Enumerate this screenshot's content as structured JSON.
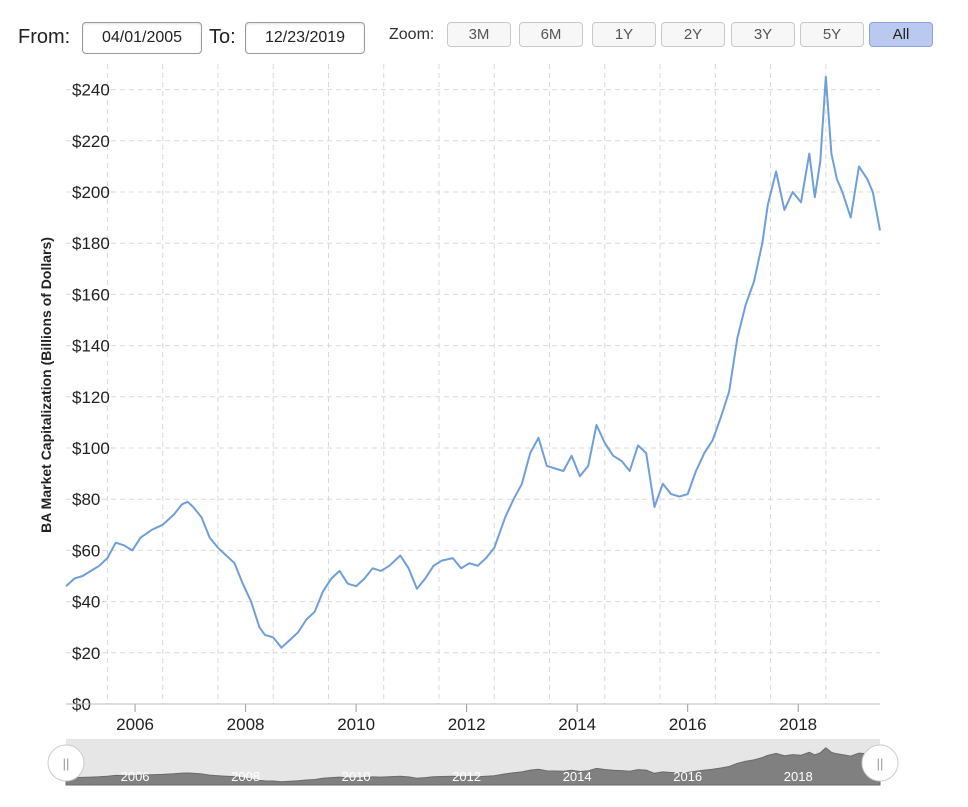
{
  "controls": {
    "from_label": "From:",
    "from_value": "04/01/2005",
    "to_label": "To:",
    "to_value": "12/23/2019",
    "zoom_label": "Zoom:",
    "zoom_buttons": [
      "3M",
      "6M",
      "1Y",
      "2Y",
      "3Y",
      "5Y",
      "All"
    ],
    "zoom_selected": "All"
  },
  "navigator": {
    "handle_glyph": "||",
    "range_start": "04/01/2005",
    "range_end": "12/23/2019"
  },
  "colors": {
    "line": "#6f9fd8",
    "grid": "#d9d9d9",
    "navigator_fill": "#808080",
    "navigator_bg": "#e6e6e6",
    "zoom_active": "#b9c9f0"
  },
  "chart_data": {
    "type": "line",
    "title": "",
    "xlabel": "",
    "ylabel": "BA Market Capitalization (Billions of Dollars)",
    "x_ticks": [
      "2006",
      "2008",
      "2010",
      "2012",
      "2014",
      "2016",
      "2018"
    ],
    "y_ticks": [
      "$0",
      "$20",
      "$40",
      "$60",
      "$80",
      "$100",
      "$120",
      "$140",
      "$160",
      "$180",
      "$200",
      "$220",
      "$240"
    ],
    "ylim": [
      0,
      250
    ],
    "xlim": [
      2005.25,
      2019.98
    ],
    "grid": true,
    "legend": "none",
    "series": [
      {
        "values": [
          [
            2005.25,
            46
          ],
          [
            2005.4,
            49
          ],
          [
            2005.55,
            50
          ],
          [
            2005.7,
            52
          ],
          [
            2005.85,
            54
          ],
          [
            2006.0,
            57
          ],
          [
            2006.15,
            63
          ],
          [
            2006.3,
            62
          ],
          [
            2006.45,
            60
          ],
          [
            2006.6,
            65
          ],
          [
            2006.8,
            68
          ],
          [
            2007.0,
            70
          ],
          [
            2007.2,
            74
          ],
          [
            2007.35,
            78
          ],
          [
            2007.45,
            79
          ],
          [
            2007.55,
            77
          ],
          [
            2007.7,
            73
          ],
          [
            2007.85,
            65
          ],
          [
            2008.0,
            61
          ],
          [
            2008.15,
            58
          ],
          [
            2008.3,
            55
          ],
          [
            2008.45,
            47
          ],
          [
            2008.6,
            40
          ],
          [
            2008.75,
            30
          ],
          [
            2008.85,
            27
          ],
          [
            2009.0,
            26
          ],
          [
            2009.15,
            22
          ],
          [
            2009.3,
            25
          ],
          [
            2009.45,
            28
          ],
          [
            2009.6,
            33
          ],
          [
            2009.75,
            36
          ],
          [
            2009.9,
            44
          ],
          [
            2010.05,
            49
          ],
          [
            2010.2,
            52
          ],
          [
            2010.35,
            47
          ],
          [
            2010.5,
            46
          ],
          [
            2010.65,
            49
          ],
          [
            2010.8,
            53
          ],
          [
            2010.95,
            52
          ],
          [
            2011.1,
            54
          ],
          [
            2011.3,
            58
          ],
          [
            2011.45,
            53
          ],
          [
            2011.6,
            45
          ],
          [
            2011.75,
            49
          ],
          [
            2011.9,
            54
          ],
          [
            2012.05,
            56
          ],
          [
            2012.25,
            57
          ],
          [
            2012.4,
            53
          ],
          [
            2012.55,
            55
          ],
          [
            2012.7,
            54
          ],
          [
            2012.85,
            57
          ],
          [
            2013.0,
            61
          ],
          [
            2013.2,
            73
          ],
          [
            2013.35,
            80
          ],
          [
            2013.5,
            86
          ],
          [
            2013.65,
            98
          ],
          [
            2013.8,
            104
          ],
          [
            2013.95,
            93
          ],
          [
            2014.1,
            92
          ],
          [
            2014.25,
            91
          ],
          [
            2014.4,
            97
          ],
          [
            2014.55,
            89
          ],
          [
            2014.7,
            93
          ],
          [
            2014.85,
            109
          ],
          [
            2015.0,
            102
          ],
          [
            2015.15,
            97
          ],
          [
            2015.3,
            95
          ],
          [
            2015.45,
            91
          ],
          [
            2015.6,
            101
          ],
          [
            2015.75,
            98
          ],
          [
            2015.9,
            77
          ],
          [
            2016.05,
            86
          ],
          [
            2016.2,
            82
          ],
          [
            2016.35,
            81
          ],
          [
            2016.5,
            82
          ],
          [
            2016.65,
            91
          ],
          [
            2016.8,
            98
          ],
          [
            2016.95,
            103
          ],
          [
            2017.1,
            112
          ],
          [
            2017.25,
            122
          ],
          [
            2017.4,
            143
          ],
          [
            2017.55,
            156
          ],
          [
            2017.7,
            165
          ],
          [
            2017.85,
            180
          ],
          [
            2017.95,
            195
          ],
          [
            2018.1,
            208
          ],
          [
            2018.25,
            193
          ],
          [
            2018.4,
            200
          ],
          [
            2018.55,
            196
          ],
          [
            2018.7,
            215
          ],
          [
            2018.8,
            198
          ],
          [
            2018.9,
            212
          ],
          [
            2019.0,
            245
          ],
          [
            2019.1,
            215
          ],
          [
            2019.2,
            205
          ],
          [
            2019.3,
            200
          ],
          [
            2019.45,
            190
          ],
          [
            2019.6,
            210
          ],
          [
            2019.75,
            205
          ],
          [
            2019.85,
            200
          ],
          [
            2019.98,
            185
          ]
        ]
      }
    ]
  }
}
